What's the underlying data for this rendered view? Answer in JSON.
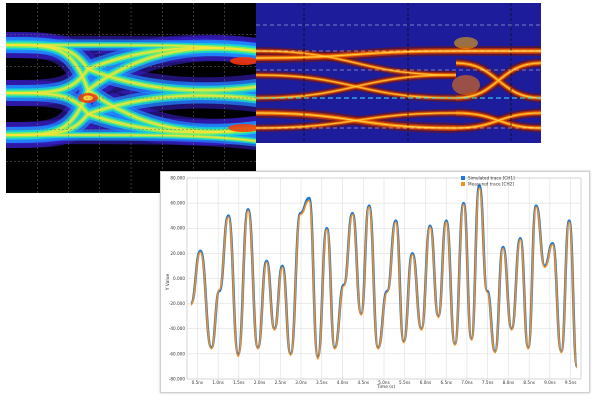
{
  "colors": {
    "left_background": "#000000",
    "right_background": "#1d1d9c",
    "series_simulated": "#1f77d4",
    "series_measured": "#f28e1e",
    "grid": "#d8d8d8",
    "eye_center": "#ff2a00",
    "dashed_lines": "#ffffff",
    "dashed_center": "#33e6ff"
  },
  "icons": {
    "legend_simulated": "square-swatch-icon",
    "legend_measured": "square-swatch-icon"
  },
  "eye_diagrams": {
    "left_style": "rainbow-density",
    "right_style": "heat-density"
  },
  "chart_data": {
    "type": "line",
    "xlabel": "Time (s)",
    "ylabel": "Y Value",
    "legend_position": "top-right",
    "grid": true,
    "xlim": [
      0,
      10
    ],
    "ylim": [
      -80,
      80
    ],
    "yticks": [
      "80.000",
      "60.000",
      "40.000",
      "20.000",
      "0.000",
      "-20.000",
      "-40.000",
      "-60.000",
      "-80.000"
    ],
    "xticks": [
      "0.5ns",
      "1.0ns",
      "1.5ns",
      "2.0ns",
      "2.5ns",
      "3.0ns",
      "3.5ns",
      "4.0ns",
      "4.5ns",
      "5.0ns",
      "5.5ns",
      "6.0ns",
      "6.5ns",
      "7.0ns",
      "7.5ns",
      "8.0ns",
      "8.5ns",
      "9.0ns",
      "9.5ns"
    ],
    "x": [
      0.1,
      0.34,
      0.62,
      0.82,
      1.05,
      1.3,
      1.55,
      1.8,
      2.02,
      2.22,
      2.42,
      2.63,
      2.88,
      3.1,
      3.32,
      3.55,
      3.75,
      3.98,
      4.2,
      4.42,
      4.62,
      4.85,
      5.08,
      5.3,
      5.5,
      5.72,
      5.95,
      6.17,
      6.38,
      6.58,
      6.8,
      7.02,
      7.22,
      7.42,
      7.62,
      7.82,
      8.02,
      8.24,
      8.46,
      8.66,
      8.86,
      9.08,
      9.28,
      9.5,
      9.7,
      9.9
    ],
    "series": [
      {
        "name": "Simulated trace [CH1]",
        "values": [
          -20,
          22,
          -55,
          -10,
          50,
          -60,
          55,
          -55,
          14,
          -40,
          10,
          -60,
          52,
          64,
          -62,
          40,
          -55,
          -5,
          52,
          -28,
          58,
          -55,
          -10,
          46,
          -50,
          20,
          -40,
          42,
          -30,
          46,
          -52,
          60,
          -48,
          74,
          -10,
          -58,
          25,
          -40,
          32,
          -55,
          58,
          10,
          28,
          -58,
          46,
          -70
        ]
      },
      {
        "name": "Measured trace [CH2]",
        "values": [
          -21,
          21,
          -56,
          -9,
          49,
          -62,
          54,
          -56,
          13,
          -41,
          9,
          -61,
          51,
          62,
          -64,
          39,
          -56,
          -6,
          51,
          -29,
          57,
          -56,
          -11,
          45,
          -51,
          19,
          -41,
          41,
          -31,
          45,
          -53,
          59,
          -49,
          72,
          -11,
          -59,
          24,
          -41,
          31,
          -56,
          57,
          9,
          27,
          -59,
          45,
          -71
        ]
      }
    ]
  }
}
